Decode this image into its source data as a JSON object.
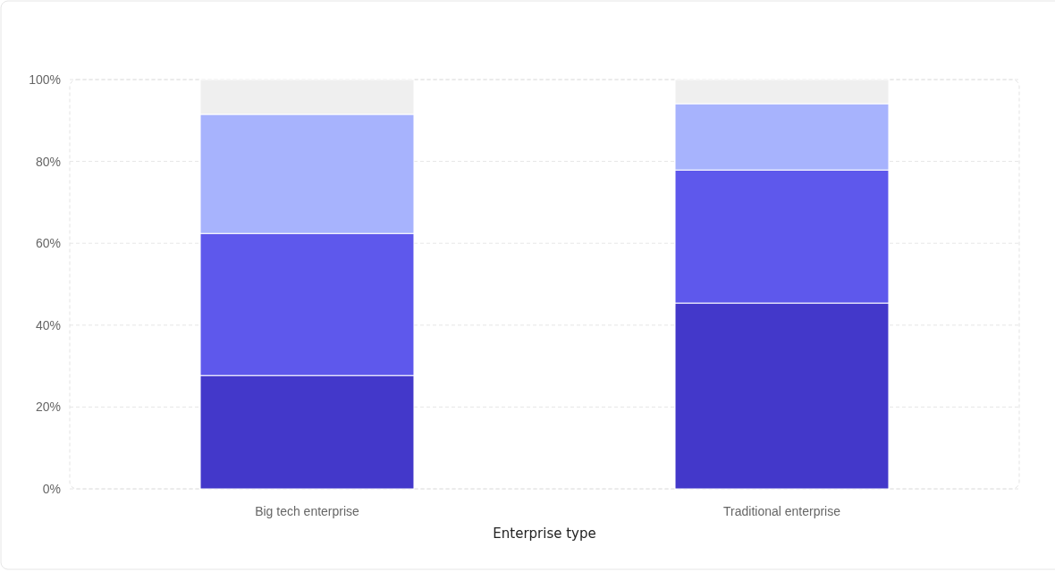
{
  "chart_data": {
    "type": "bar",
    "stacked": true,
    "xlabel": "Enterprise type",
    "categories": [
      "Big tech enterprise",
      "Traditional enterprise"
    ],
    "series": [
      {
        "color": "#4338ca",
        "values": [
          27.7,
          45.4
        ]
      },
      {
        "color": "#5e58ec",
        "values": [
          34.7,
          32.5
        ]
      },
      {
        "color": "#a7b3fd",
        "values": [
          29.1,
          16.2
        ]
      },
      {
        "color": "#efefef",
        "values": [
          8.5,
          5.9
        ]
      }
    ],
    "ylim": [
      0,
      100
    ],
    "yticks": [
      {
        "value": 0,
        "label": "0%"
      },
      {
        "value": 20,
        "label": "20%"
      },
      {
        "value": 40,
        "label": "40%"
      },
      {
        "value": 60,
        "label": "60%"
      },
      {
        "value": 80,
        "label": "80%"
      },
      {
        "value": 100,
        "label": "100%"
      }
    ],
    "grid": "y"
  }
}
